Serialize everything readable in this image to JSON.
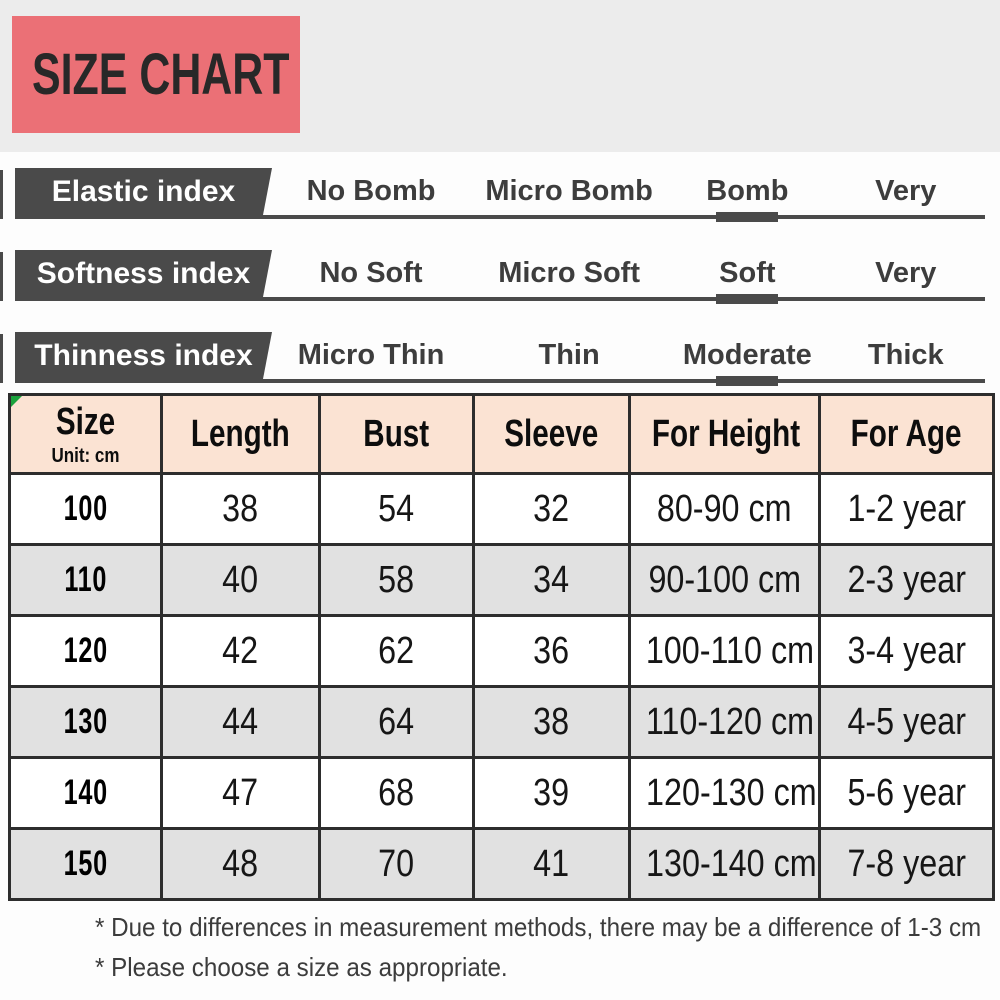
{
  "page": {
    "title": "SIZE CHART"
  },
  "indexes": [
    {
      "label": "Elastic index",
      "options": [
        "No Bomb",
        "Micro Bomb",
        "Bomb",
        "Very"
      ],
      "selected": 2
    },
    {
      "label": "Softness index",
      "options": [
        "No Soft",
        "Micro Soft",
        "Soft",
        "Very"
      ],
      "selected": 2
    },
    {
      "label": "Thinness index",
      "options": [
        "Micro Thin",
        "Thin",
        "Moderate",
        "Thick"
      ],
      "selected": 2
    }
  ],
  "chart_data": {
    "type": "table",
    "title": "SIZE CHART",
    "unit_note": "Unit: cm",
    "columns": [
      "Size",
      "Length",
      "Bust",
      "Sleeve",
      "For Height",
      "For Age"
    ],
    "rows": [
      [
        "100",
        "38",
        "54",
        "32",
        "80-90 cm",
        "1-2 year"
      ],
      [
        "110",
        "40",
        "58",
        "34",
        "90-100 cm",
        "2-3 year"
      ],
      [
        "120",
        "42",
        "62",
        "36",
        "100-110 cm",
        "3-4 year"
      ],
      [
        "130",
        "44",
        "64",
        "38",
        "110-120 cm",
        "4-5 year"
      ],
      [
        "140",
        "47",
        "68",
        "39",
        "120-130 cm",
        "5-6 year"
      ],
      [
        "150",
        "48",
        "70",
        "41",
        "130-140 cm",
        "7-8 year"
      ]
    ]
  },
  "notes": [
    "* Due to differences in measurement methods, there may be a difference of 1-3 cm",
    "* Please choose a size as appropriate."
  ],
  "colors": {
    "title_bg": "#eb7076",
    "band_bg": "#ececec",
    "index_dark": "#4a4a4a",
    "header_bg": "#fbe3d3",
    "row_alt_bg": "#e1e1e1",
    "border": "#2d2d2d",
    "marker_green": "#1aa23c"
  }
}
